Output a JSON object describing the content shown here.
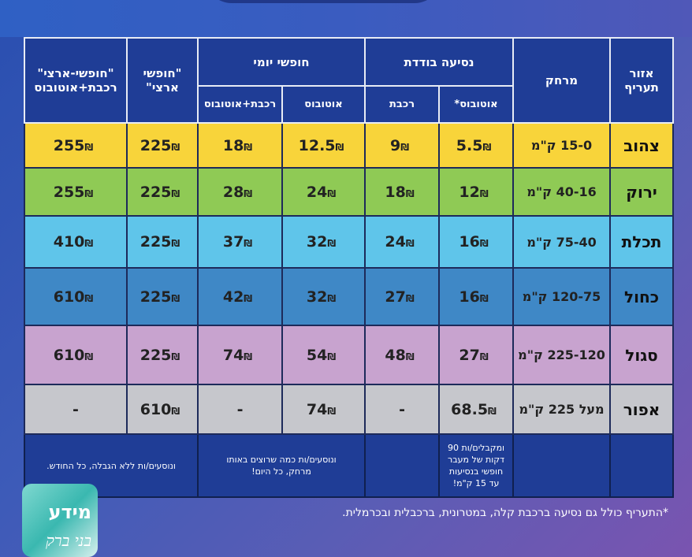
{
  "header": {
    "zone": "אזור תעריף",
    "distance": "מרחק",
    "single_ride": "נסיעה בודדת",
    "single_bus": "אוטובוס*",
    "single_train": "רכבת",
    "daily": "חופשי יומי",
    "daily_bus": "אוטובוס",
    "daily_train_bus": "רכבת+אוטובוס",
    "national": "\"חופשי ארצי\"",
    "national_train_bus": "\"חופשי-ארצי\" רכבת+אוטובוס"
  },
  "currency": "₪",
  "colors": {
    "header": "#1f3d96",
    "yellow": "#f8d43a",
    "green": "#8fca55",
    "light_blue": "#5fc5ea",
    "blue": "#3f88c6",
    "purple": "#c8a3cf",
    "gray": "#c6c7cc"
  },
  "rows": [
    {
      "zone": "צהוב",
      "distance": "15-0 ק\"מ",
      "values": [
        "5.5",
        "9",
        "12.5",
        "18",
        "225",
        "255"
      ]
    },
    {
      "zone": "ירוק",
      "distance": "40-16 ק\"מ",
      "values": [
        "12",
        "18",
        "24",
        "28",
        "225",
        "255"
      ]
    },
    {
      "zone": "תכלת",
      "distance": "75-40 ק\"מ",
      "values": [
        "16",
        "24",
        "32",
        "37",
        "225",
        "410"
      ]
    },
    {
      "zone": "כחול",
      "distance": "120-75 ק\"מ",
      "values": [
        "16",
        "27",
        "32",
        "42",
        "225",
        "610"
      ]
    },
    {
      "zone": "סגול",
      "distance": "225-120 ק\"מ",
      "values": [
        "27",
        "48",
        "54",
        "74",
        "225",
        "610"
      ]
    },
    {
      "zone": "אפור",
      "distance": "מעל 225 ק\"מ",
      "values": [
        "68.5",
        "-",
        "74",
        "-",
        "610",
        "-"
      ]
    }
  ],
  "footer": {
    "single_note": "ומקבלים/ות 90 דקות של מעבר חופשי בנסיעות עד 15 ק\"מ!",
    "daily_note": "ונוסעים/ות כמה שרוצים באותו מרחק, כל היום!",
    "national_note": "ונוסעים/ות ללא הגבלה, כל החודש."
  },
  "note": "*התעריף כולל גם נסיעה ברכבת קלה, במטרונית, ברכבלית ובכרמלית.",
  "logo": {
    "line1": "מידע",
    "line2": "בני ברק"
  }
}
